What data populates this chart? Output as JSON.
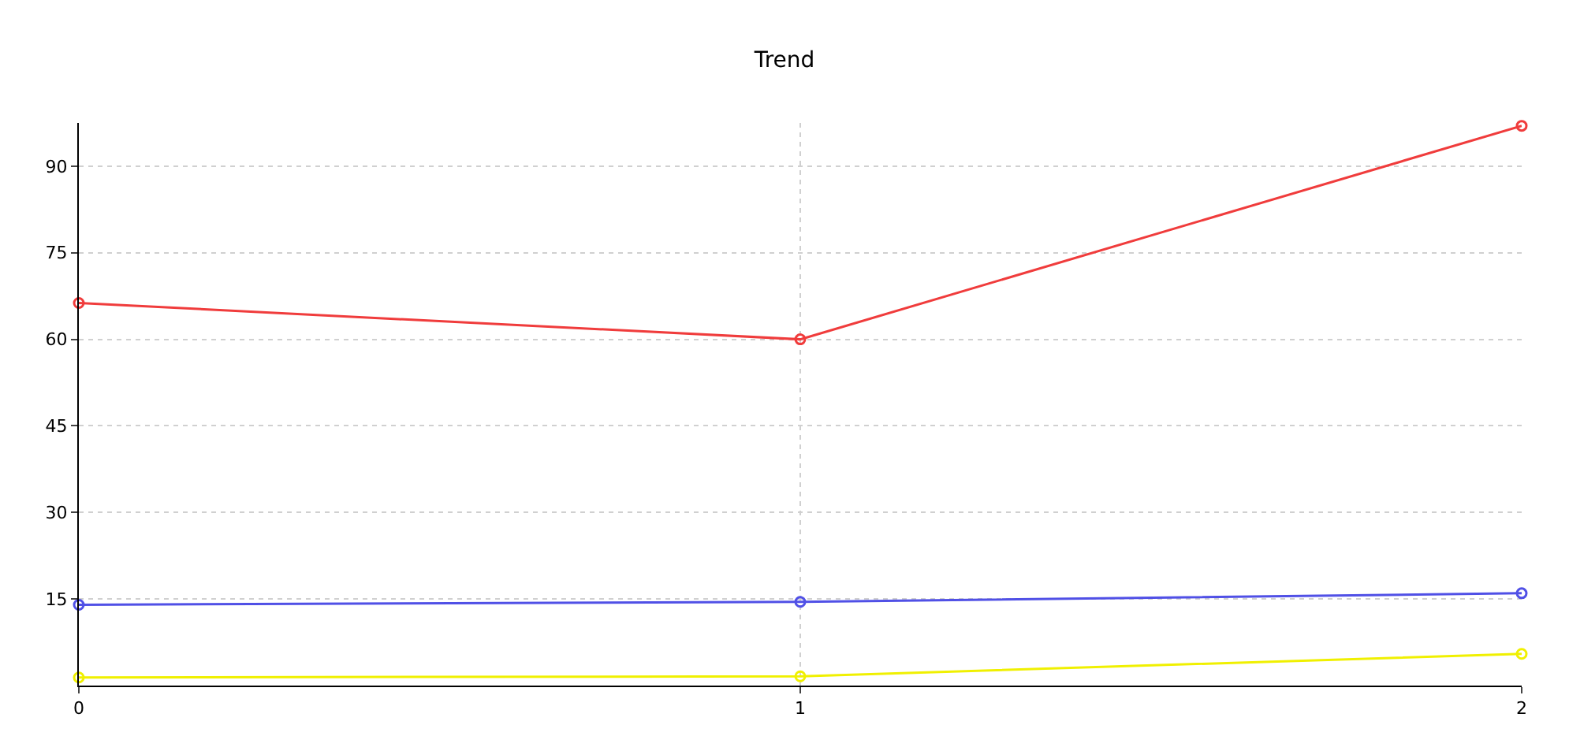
{
  "chart_data": {
    "type": "line",
    "title": "Trend",
    "x": [
      0,
      1,
      2
    ],
    "series": [
      {
        "color": "#f03c3c",
        "values": [
          66.3,
          60,
          97
        ]
      },
      {
        "color": "#5050e6",
        "values": [
          14,
          14.5,
          16
        ]
      },
      {
        "color": "#f0f000",
        "values": [
          1.4,
          1.6,
          5.5
        ]
      }
    ],
    "xlim": [
      0,
      2
    ],
    "xticks": [
      0,
      1,
      2
    ],
    "ylim": [
      0,
      97.5
    ],
    "yticks": [
      15,
      30,
      45,
      60,
      75,
      90
    ],
    "grid": true,
    "marker": "circle",
    "line_style": "solid"
  }
}
